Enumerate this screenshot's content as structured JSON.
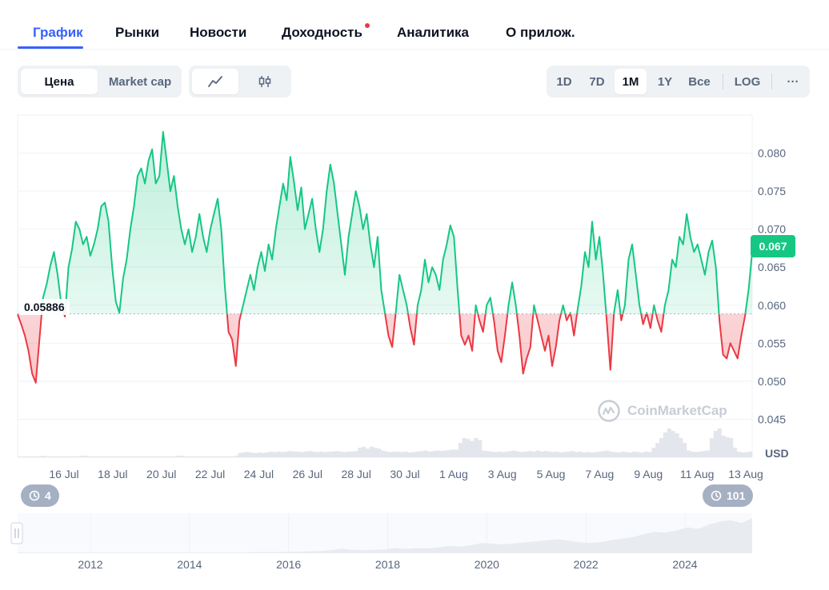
{
  "tabs": [
    {
      "label": "График",
      "active": true
    },
    {
      "label": "Рынки"
    },
    {
      "label": "Новости"
    },
    {
      "label": "Доходность"
    },
    {
      "label": "Аналитика"
    },
    {
      "label": "О прилож."
    }
  ],
  "controls": {
    "metric": [
      "Цена",
      "Market cap"
    ],
    "chart_type_icons": [
      "line-chart-icon",
      "candlestick-icon"
    ],
    "ranges": [
      "1D",
      "7D",
      "1M",
      "1Y",
      "Все"
    ],
    "log": "LOG",
    "more": "···",
    "active_range": "1M"
  },
  "colors": {
    "up": "#16c784",
    "down": "#ea3943",
    "accent": "#3861fb"
  },
  "chart_data": {
    "type": "line",
    "title": "",
    "baseline": 0.05886,
    "baseline_label": "0.05886",
    "current_price_label": "0.067",
    "ylim": [
      0.04,
      0.085
    ],
    "ylabel": "USD",
    "y_ticks": [
      "0.080",
      "0.075",
      "0.070",
      "0.065",
      "0.060",
      "0.055",
      "0.050",
      "0.045"
    ],
    "x_ticks": [
      "16 Jul",
      "18 Jul",
      "20 Jul",
      "22 Jul",
      "24 Jul",
      "26 Jul",
      "28 Jul",
      "30 Jul",
      "1 Aug",
      "3 Aug",
      "5 Aug",
      "7 Aug",
      "9 Aug",
      "11 Aug",
      "13 Aug"
    ],
    "series": [
      {
        "name": "Price",
        "values": [
          0.0588,
          0.0575,
          0.056,
          0.054,
          0.051,
          0.0498,
          0.0555,
          0.061,
          0.0628,
          0.0652,
          0.067,
          0.064,
          0.0602,
          0.0585,
          0.065,
          0.0675,
          0.071,
          0.07,
          0.068,
          0.069,
          0.0665,
          0.068,
          0.07,
          0.073,
          0.0735,
          0.071,
          0.065,
          0.0605,
          0.059,
          0.0635,
          0.066,
          0.07,
          0.073,
          0.077,
          0.078,
          0.076,
          0.079,
          0.0805,
          0.076,
          0.077,
          0.0828,
          0.079,
          0.075,
          0.077,
          0.073,
          0.07,
          0.068,
          0.07,
          0.067,
          0.069,
          0.072,
          0.069,
          0.067,
          0.07,
          0.072,
          0.074,
          0.07,
          0.0625,
          0.0565,
          0.0555,
          0.052,
          0.058,
          0.06,
          0.062,
          0.064,
          0.062,
          0.065,
          0.067,
          0.0645,
          0.068,
          0.066,
          0.07,
          0.073,
          0.076,
          0.0738,
          0.0795,
          0.0762,
          0.0725,
          0.0755,
          0.07,
          0.072,
          0.074,
          0.07,
          0.067,
          0.07,
          0.075,
          0.0785,
          0.076,
          0.072,
          0.068,
          0.064,
          0.069,
          0.072,
          0.075,
          0.073,
          0.07,
          0.072,
          0.068,
          0.065,
          0.069,
          0.062,
          0.059,
          0.056,
          0.0545,
          0.059,
          0.064,
          0.062,
          0.06,
          0.057,
          0.0548,
          0.06,
          0.062,
          0.066,
          0.063,
          0.065,
          0.064,
          0.062,
          0.066,
          0.068,
          0.0705,
          0.069,
          0.062,
          0.056,
          0.0548,
          0.056,
          0.054,
          0.06,
          0.058,
          0.0565,
          0.06,
          0.061,
          0.058,
          0.054,
          0.0525,
          0.056,
          0.06,
          0.063,
          0.06,
          0.056,
          0.051,
          0.053,
          0.0545,
          0.06,
          0.058,
          0.056,
          0.054,
          0.056,
          0.052,
          0.0545,
          0.058,
          0.06,
          0.058,
          0.059,
          0.056,
          0.0595,
          0.0625,
          0.067,
          0.065,
          0.071,
          0.066,
          0.069,
          0.064,
          0.058,
          0.0515,
          0.059,
          0.062,
          0.058,
          0.06,
          0.066,
          0.068,
          0.064,
          0.06,
          0.0575,
          0.059,
          0.057,
          0.06,
          0.058,
          0.0565,
          0.06,
          0.062,
          0.066,
          0.065,
          0.069,
          0.068,
          0.072,
          0.069,
          0.067,
          0.068,
          0.066,
          0.064,
          0.067,
          0.0685,
          0.065,
          0.058,
          0.0535,
          0.053,
          0.055,
          0.054,
          0.053,
          0.056,
          0.0585,
          0.062,
          0.067
        ]
      }
    ],
    "volume_series": [
      0.02,
      0.02,
      0.02,
      0.02,
      0.02,
      0.02,
      0.03,
      0.02,
      0.02,
      0.02,
      0.02,
      0.02,
      0.02,
      0.02,
      0.02,
      0.02,
      0.03,
      0.03,
      0.02,
      0.02,
      0.02,
      0.02,
      0.02,
      0.02,
      0.02,
      0.02,
      0.02,
      0.02,
      0.02,
      0.02,
      0.02,
      0.02,
      0.02,
      0.02,
      0.02,
      0.02,
      0.02,
      0.02,
      0.02,
      0.02,
      0.02,
      0.03,
      0.03,
      0.02,
      0.02,
      0.02,
      0.02,
      0.02,
      0.02,
      0.02,
      0.02,
      0.02,
      0.02,
      0.02,
      0.02,
      0.02,
      0.03,
      0.09,
      0.1,
      0.11,
      0.1,
      0.09,
      0.1,
      0.09,
      0.1,
      0.12,
      0.11,
      0.12,
      0.11,
      0.12,
      0.13,
      0.12,
      0.12,
      0.11,
      0.12,
      0.13,
      0.12,
      0.11,
      0.12,
      0.11,
      0.12,
      0.12,
      0.13,
      0.12,
      0.11,
      0.12,
      0.12,
      0.13,
      0.2,
      0.22,
      0.18,
      0.22,
      0.2,
      0.18,
      0.14,
      0.12,
      0.11,
      0.12,
      0.12,
      0.11,
      0.12,
      0.1,
      0.11,
      0.12,
      0.13,
      0.14,
      0.12,
      0.13,
      0.14,
      0.13,
      0.14,
      0.15,
      0.16,
      0.16,
      0.3,
      0.4,
      0.38,
      0.34,
      0.4,
      0.36,
      0.14,
      0.13,
      0.12,
      0.11,
      0.12,
      0.11,
      0.12,
      0.13,
      0.14,
      0.12,
      0.11,
      0.12,
      0.13,
      0.12,
      0.14,
      0.12,
      0.13,
      0.12,
      0.11,
      0.12,
      0.1,
      0.11,
      0.12,
      0.13,
      0.11,
      0.12,
      0.1,
      0.11,
      0.1,
      0.11,
      0.12,
      0.13,
      0.14,
      0.12,
      0.11,
      0.1,
      0.12,
      0.11,
      0.1,
      0.12,
      0.11,
      0.1,
      0.12,
      0.11,
      0.2,
      0.3,
      0.4,
      0.52,
      0.6,
      0.55,
      0.5,
      0.4,
      0.3,
      0.14,
      0.12,
      0.11,
      0.12,
      0.13,
      0.14,
      0.4,
      0.55,
      0.6,
      0.45,
      0.42,
      0.4,
      0.2,
      0.12,
      0.1,
      0.11,
      0.12
    ],
    "navigator": {
      "x_ticks": [
        "2012",
        "2014",
        "2016",
        "2018",
        "2020",
        "2022",
        "2024"
      ],
      "values": [
        0.02,
        0.02,
        0.02,
        0.02,
        0.02,
        0.02,
        0.02,
        0.02,
        0.02,
        0.02,
        0.02,
        0.02,
        0.02,
        0.02,
        0.02,
        0.02,
        0.02,
        0.02,
        0.02,
        0.02,
        0.02,
        0.02,
        0.03,
        0.03,
        0.03,
        0.04,
        0.04,
        0.05,
        0.06,
        0.08,
        0.12,
        0.09,
        0.08,
        0.09,
        0.1,
        0.14,
        0.12,
        0.14,
        0.13,
        0.16,
        0.2,
        0.18,
        0.22,
        0.28,
        0.26,
        0.24,
        0.27,
        0.3,
        0.32,
        0.35,
        0.38,
        0.34,
        0.3,
        0.28,
        0.3,
        0.36,
        0.4,
        0.44,
        0.52,
        0.58,
        0.56,
        0.62,
        0.7,
        0.66,
        0.78,
        0.86,
        0.9,
        0.82,
        0.95
      ]
    }
  },
  "badges": {
    "left_count": "4",
    "right_count": "101"
  },
  "watermark": "CoinMarketCap"
}
